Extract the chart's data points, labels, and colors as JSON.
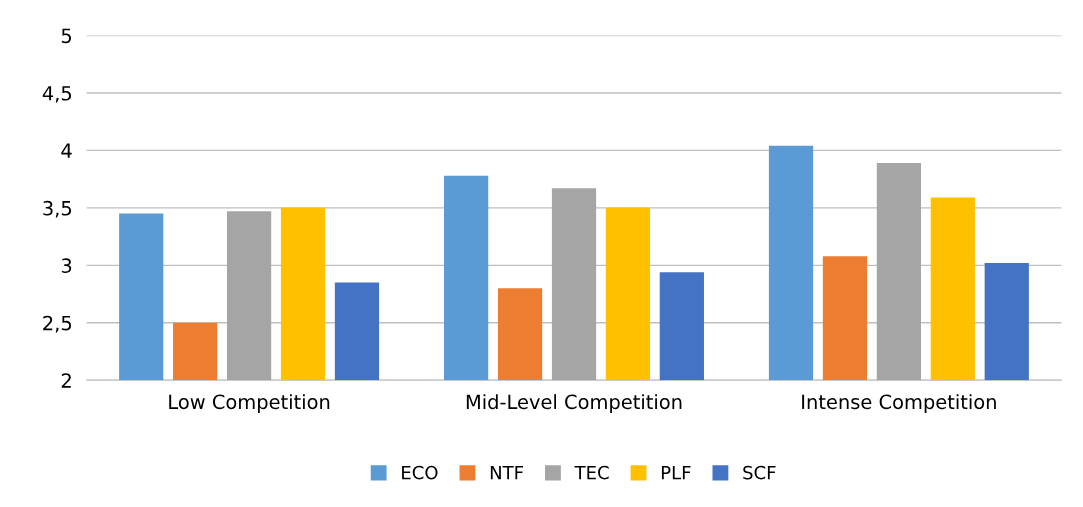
{
  "chart_data": {
    "type": "bar",
    "categories": [
      "Low Competition",
      "Mid-Level Competition",
      "Intense Competition"
    ],
    "series": [
      {
        "name": "ECO",
        "color": "#5b9bd5",
        "values": [
          3.45,
          3.78,
          4.04
        ]
      },
      {
        "name": "NTF",
        "color": "#ed7d31",
        "values": [
          2.5,
          2.8,
          3.08
        ]
      },
      {
        "name": "TEC",
        "color": "#a5a5a5",
        "values": [
          3.47,
          3.67,
          3.89
        ]
      },
      {
        "name": "PLF",
        "color": "#ffc000",
        "values": [
          3.5,
          3.5,
          3.59
        ]
      },
      {
        "name": "SCF",
        "color": "#4472c4",
        "values": [
          2.85,
          2.94,
          3.02
        ]
      }
    ],
    "ylim": [
      2,
      5
    ],
    "yticks": [
      2,
      {
        "value": 2.5,
        "label": "2,5"
      },
      3,
      {
        "value": 3.5,
        "label": "3,5"
      },
      4,
      {
        "value": 4.5,
        "label": "4,5"
      },
      5
    ],
    "grid": "y",
    "legend": "bottom"
  }
}
